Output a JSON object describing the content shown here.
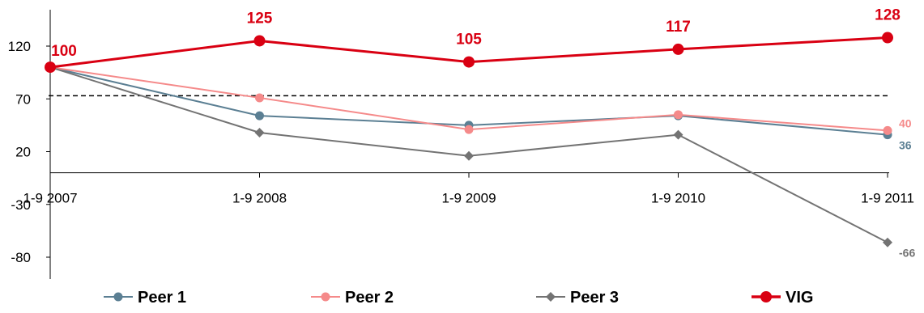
{
  "chart_data": {
    "type": "line",
    "categories": [
      "1-9 2007",
      "1-9 2008",
      "1-9 2009",
      "1-9 2010",
      "1-9 2011"
    ],
    "y_ticks": [
      "120",
      "70",
      "20",
      "-30",
      "-80"
    ],
    "ylim": [
      -105,
      155
    ],
    "reference_line": {
      "value": 73,
      "style": "dashed"
    },
    "grid": false,
    "legend_position": "bottom",
    "series": [
      {
        "name": "Peer 1",
        "values": [
          100,
          54,
          45,
          54,
          36
        ],
        "color": "#5b7f93",
        "marker": "circle",
        "end_label": "36"
      },
      {
        "name": "Peer 2",
        "values": [
          100,
          71,
          41,
          55,
          40
        ],
        "color": "#f58a8a",
        "marker": "circle",
        "end_label": "40"
      },
      {
        "name": "Peer 3",
        "values": [
          100,
          38,
          16,
          36,
          -66
        ],
        "color": "#737373",
        "marker": "diamond",
        "end_label": "-66"
      },
      {
        "name": "VIG",
        "values": [
          100,
          125,
          105,
          117,
          128
        ],
        "color": "#d90012",
        "marker": "circle",
        "point_labels": [
          "100",
          "125",
          "105",
          "117",
          "128"
        ]
      }
    ]
  }
}
